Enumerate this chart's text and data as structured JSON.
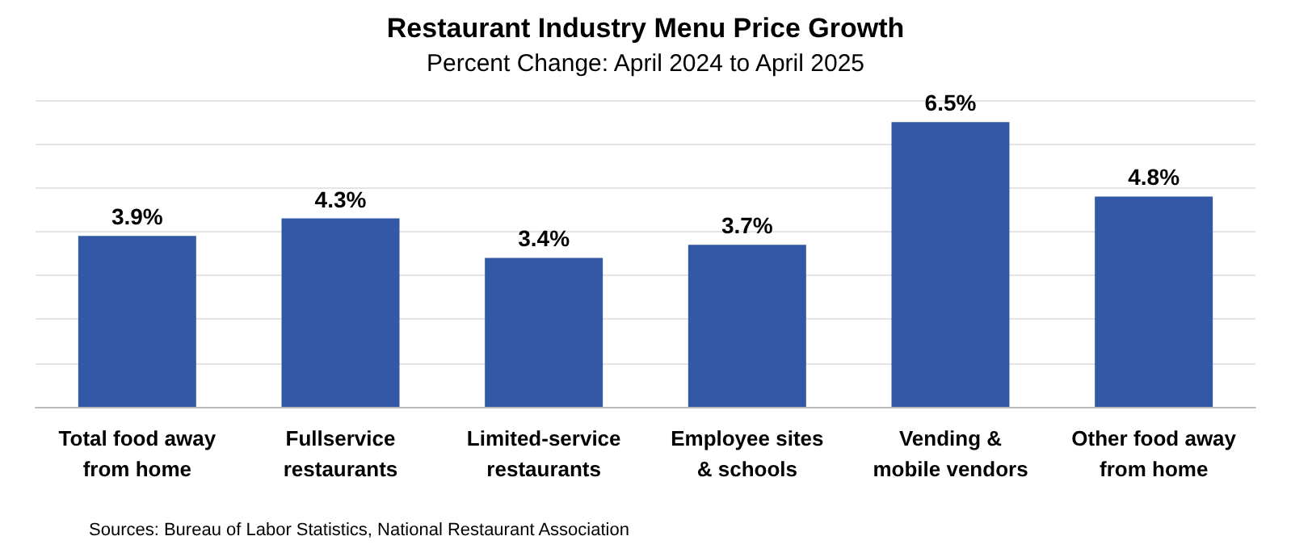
{
  "chart_data": {
    "type": "bar",
    "title": "Restaurant Industry Menu Price Growth",
    "subtitle": "Percent Change: April 2024 to April 2025",
    "categories": [
      "Total food away\nfrom home",
      "Fullservice\nrestaurants",
      "Limited-service\nrestaurants",
      "Employee sites\n& schools",
      "Vending &\nmobile vendors",
      "Other food away\nfrom home"
    ],
    "values": [
      3.9,
      4.3,
      3.4,
      3.7,
      6.5,
      4.8
    ],
    "value_labels": [
      "3.9%",
      "4.3%",
      "3.4%",
      "3.7%",
      "6.5%",
      "4.8%"
    ],
    "color": "#3358a6",
    "ylim": [
      0,
      7
    ],
    "yticks": [
      {
        "value": 0,
        "label": null
      },
      {
        "value": 1,
        "label": null
      },
      {
        "value": 2,
        "label": null
      },
      {
        "value": 3,
        "label": null
      },
      {
        "value": 4,
        "label": null
      },
      {
        "value": 5,
        "label": null
      },
      {
        "value": 6,
        "label": null
      },
      {
        "value": 7,
        "label": null
      }
    ],
    "grid": "y",
    "tick_labels": "x",
    "annotations": [
      "Sources: Bureau of Labor Statistics, National Restaurant Association"
    ]
  }
}
